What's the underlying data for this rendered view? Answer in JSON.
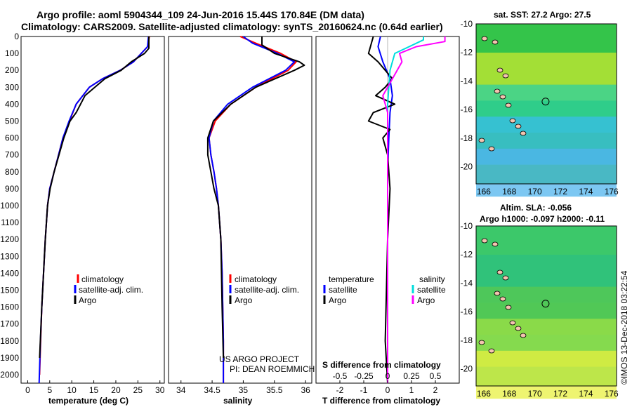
{
  "header": {
    "line1": "Argo profile: aoml 5904344_109 24-Jun-2016 15.44S 170.84E (DM data)",
    "line2": "Climatology: CARS2009. Satellite-adjusted climatology: synTS_20160624.nc (0.64d earlier)"
  },
  "colors": {
    "climatology": "#ff0000",
    "satellite": "#0000ff",
    "argo": "#000000",
    "sat_salinity": "#00dddd",
    "argo_salinity": "#ff00ff"
  },
  "depth_axis": {
    "ticks": [
      "0",
      "100",
      "200",
      "300",
      "400",
      "500",
      "600",
      "700",
      "800",
      "900",
      "1000",
      "1100",
      "1200",
      "1300",
      "1400",
      "1500",
      "1600",
      "1700",
      "1800",
      "1900",
      "2000"
    ]
  },
  "legends": {
    "temperature": {
      "items": [
        "climatology",
        "satellite-adj. clim.",
        "Argo"
      ]
    },
    "salinity": {
      "items": [
        "climatology",
        "satellite-adj. clim.",
        "Argo"
      ]
    },
    "difference": {
      "left_title": "temperature",
      "right_title": "salinity",
      "left_items": [
        "satellite",
        "Argo"
      ],
      "right_items": [
        "satellite",
        "Argo"
      ]
    }
  },
  "project": {
    "line1": "US ARGO PROJECT",
    "line2": "PI: DEAN ROEMMICH"
  },
  "maps": {
    "sst_title": "sat. SST: 27.2 Argo: 27.5",
    "sla_title1": "Altim. SLA: -0.056",
    "sla_title2": "Argo h1000: -0.097 h2000: -0.11",
    "lat_ticks": [
      "-10",
      "-12",
      "-14",
      "-16",
      "-18",
      "-20"
    ],
    "lon_ticks": [
      "166",
      "168",
      "170",
      "172",
      "174",
      "176"
    ],
    "float_position": {
      "lon": 170.84,
      "lat": -15.44
    }
  },
  "watermark": "©IMOS 13-Dec-2018 03:22:54",
  "chart_data": [
    {
      "type": "line",
      "id": "temperature",
      "xlabel": "temperature (deg C)",
      "ylabel": "",
      "xlim": [
        -1.5,
        31
      ],
      "ylim": [
        2050,
        0
      ],
      "xticks": [
        "0",
        "5",
        "10",
        "15",
        "20",
        "25",
        "30"
      ],
      "series": [
        {
          "name": "climatology",
          "color": "#ff0000",
          "x": [
            27.6,
            27.2,
            24,
            21,
            17,
            14,
            11,
            9.5,
            8,
            7,
            6,
            5,
            4.5,
            4,
            3.6,
            3.2,
            2.95,
            2.7
          ],
          "y": [
            0,
            60,
            150,
            200,
            250,
            300,
            400,
            500,
            600,
            700,
            800,
            900,
            1000,
            1200,
            1400,
            1600,
            1800,
            2000
          ]
        },
        {
          "name": "satellite-adj. clim.",
          "color": "#0000ff",
          "x": [
            27.4,
            27.2,
            24,
            21,
            17,
            14,
            11,
            9.4,
            8,
            7,
            6,
            5,
            4.5,
            4,
            3.6,
            3.2,
            2.9,
            2.6
          ],
          "y": [
            0,
            60,
            150,
            200,
            250,
            300,
            400,
            500,
            600,
            700,
            800,
            900,
            1000,
            1200,
            1400,
            1600,
            1800,
            2050
          ]
        },
        {
          "name": "Argo",
          "color": "#000000",
          "x": [
            27.5,
            27.5,
            26.5,
            23.5,
            21.2,
            17.5,
            13,
            11,
            9.6,
            8.2,
            7.1,
            6,
            5.1,
            4.5,
            4,
            3.2,
            2.7
          ],
          "y": [
            0,
            70,
            100,
            150,
            200,
            250,
            350,
            450,
            500,
            600,
            700,
            800,
            900,
            1000,
            1200,
            1600,
            1900
          ]
        }
      ]
    },
    {
      "type": "line",
      "id": "salinity",
      "xlabel": "salinity",
      "ylabel": "",
      "xlim": [
        33.8,
        36.1
      ],
      "ylim": [
        2050,
        0
      ],
      "xticks": [
        "34",
        "34.5",
        "35",
        "35.5",
        "36"
      ],
      "series": [
        {
          "name": "climatology",
          "color": "#ff0000",
          "x": [
            34.95,
            35.2,
            35.6,
            35.85,
            35.72,
            35.2,
            34.8,
            34.55,
            34.45,
            34.48,
            34.53,
            34.57,
            34.6,
            34.64,
            34.66,
            34.67,
            34.68,
            34.68
          ],
          "y": [
            0,
            40,
            100,
            150,
            200,
            300,
            400,
            500,
            600,
            700,
            800,
            900,
            1000,
            1200,
            1400,
            1600,
            1800,
            2050
          ]
        },
        {
          "name": "satellite-adj. clim.",
          "color": "#0000ff",
          "x": [
            35.0,
            35.15,
            35.55,
            35.82,
            35.68,
            35.15,
            34.75,
            34.52,
            34.45,
            34.48,
            34.53,
            34.57,
            34.6,
            34.64,
            34.66,
            34.67,
            34.68,
            34.68
          ],
          "y": [
            0,
            40,
            100,
            150,
            200,
            300,
            400,
            500,
            600,
            700,
            800,
            900,
            1000,
            1200,
            1400,
            1600,
            1800,
            2050
          ]
        },
        {
          "name": "Argo",
          "color": "#000000",
          "x": [
            35.3,
            35.3,
            35.5,
            35.9,
            35.98,
            35.82,
            35.2,
            34.8,
            34.52,
            34.43,
            34.43,
            34.48,
            34.53,
            34.6,
            34.64,
            34.66,
            34.68
          ],
          "y": [
            0,
            50,
            100,
            150,
            170,
            200,
            300,
            400,
            500,
            600,
            700,
            800,
            900,
            1000,
            1200,
            1600,
            1900
          ]
        }
      ]
    },
    {
      "type": "line",
      "id": "difference",
      "xlabel": "T difference from climatology",
      "ylabel": "",
      "xlim": [
        -3,
        3
      ],
      "ylim": [
        2050,
        0
      ],
      "xticks": [
        "-2",
        "-1",
        "0",
        "1",
        "2"
      ],
      "secondary_xlabel": "S difference from climatology",
      "secondary_xticks": [
        "-0.5",
        "-0.25",
        "0",
        "0.25",
        "0.5"
      ],
      "series": [
        {
          "name": "temperature satellite",
          "color": "#0000ff",
          "x": [
            -0.3,
            -0.4,
            -0.2,
            0.1,
            0.2,
            0.1,
            0.05,
            0,
            0,
            0
          ],
          "y": [
            0,
            60,
            150,
            250,
            350,
            450,
            600,
            800,
            1200,
            2050
          ]
        },
        {
          "name": "temperature Argo",
          "color": "#000000",
          "x": [
            -0.6,
            -0.8,
            -0.4,
            0.2,
            -0.1,
            -0.5,
            0.3,
            -0.6,
            -0.8,
            0.1,
            -0.2,
            0,
            0.1,
            0,
            -0.1,
            0
          ],
          "y": [
            0,
            100,
            150,
            250,
            300,
            350,
            400,
            450,
            500,
            550,
            600,
            700,
            900,
            1200,
            1800,
            2050
          ]
        },
        {
          "name": "salinity satellite",
          "color": "#00dddd",
          "x": [
            1.5,
            1.5,
            0.9,
            0.3,
            0.1,
            0,
            0,
            0,
            0
          ],
          "y": [
            0,
            20,
            60,
            100,
            200,
            400,
            800,
            1200,
            2050
          ]
        },
        {
          "name": "salinity Argo",
          "color": "#ff00ff",
          "x": [
            2.4,
            2.4,
            1.2,
            0.5,
            0.6,
            0.2,
            -0.2,
            0,
            0,
            0
          ],
          "y": [
            0,
            30,
            60,
            100,
            150,
            250,
            350,
            450,
            800,
            2050
          ]
        }
      ]
    }
  ]
}
